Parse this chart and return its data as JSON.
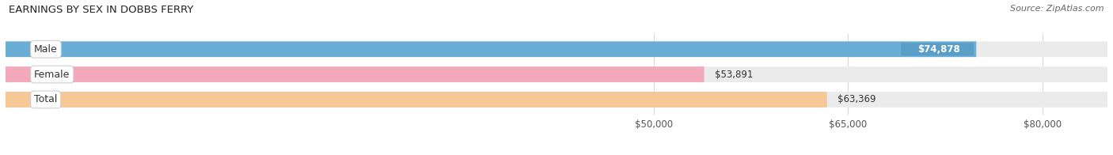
{
  "title": "EARNINGS BY SEX IN DOBBS FERRY",
  "source": "Source: ZipAtlas.com",
  "categories": [
    "Male",
    "Female",
    "Total"
  ],
  "values": [
    74878,
    53891,
    63369
  ],
  "bar_colors": [
    "#6aaed6",
    "#f4a8bc",
    "#f5c896"
  ],
  "bar_bg_color": "#ebebeb",
  "value_labels": [
    "$74,878",
    "$53,891",
    "$63,369"
  ],
  "xmin": 0,
  "xmax": 85000,
  "xlim_left": 0,
  "xlim_right": 85000,
  "xticks": [
    50000,
    65000,
    80000
  ],
  "xtick_labels": [
    "$50,000",
    "$65,000",
    "$80,000"
  ],
  "bar_height": 0.62,
  "figsize": [
    14.06,
    1.96
  ],
  "dpi": 100,
  "title_fontsize": 9.5,
  "source_fontsize": 8,
  "label_fontsize": 9,
  "value_fontsize": 8.5,
  "tick_fontsize": 8.5
}
